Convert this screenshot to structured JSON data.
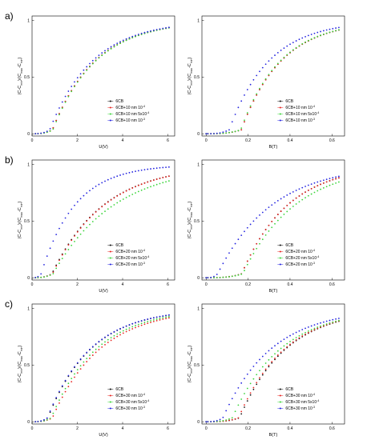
{
  "panel_labels": [
    "a)",
    "b)",
    "c)"
  ],
  "colors": {
    "6CB": "#111111",
    "1e-4": "#e8231e",
    "5e-4": "#38d538",
    "1e-3": "#2424e0"
  },
  "chart_data": [
    {
      "type": "scatter",
      "panel": "a",
      "side": "U",
      "xlabel": "U(V)",
      "ylabel": "(C-C_min)/(C_max-C_min)",
      "xlim": [
        0,
        6.3
      ],
      "ylim": [
        -0.02,
        1.04
      ],
      "xticks": [
        "0",
        "2",
        "4",
        "6"
      ],
      "yticks": [
        "0",
        "0.5",
        "1"
      ],
      "legend": [
        "6CB",
        "6CB+10 nm 10^-4",
        "6CB+10 nm 5x10^-4",
        "6CB+10 nm 10^-3"
      ],
      "series": [
        {
          "name": "6CB",
          "key": "6CB",
          "th": 0.9,
          "k": 1.9
        },
        {
          "name": "6CB+10 nm 10^-4",
          "key": "1e-4",
          "th": 0.9,
          "k": 1.9
        },
        {
          "name": "6CB+10 nm 5x10^-4",
          "key": "5e-4",
          "th": 0.92,
          "k": 1.9
        },
        {
          "name": "6CB+10 nm 10^-3",
          "key": "1e-3",
          "th": 0.78,
          "k": 1.9
        }
      ]
    },
    {
      "type": "scatter",
      "panel": "a",
      "side": "B",
      "xlabel": "B(T)",
      "ylabel": "(C-C_min)/(C_max-C_min)",
      "xlim": [
        -0.02,
        0.66
      ],
      "ylim": [
        -0.02,
        1.04
      ],
      "xticks": [
        "0",
        "0.2",
        "0.4",
        "0.6"
      ],
      "yticks": [
        "0",
        "0.5",
        "1"
      ],
      "legend": [
        "6CB",
        "6CB+10 nm 10^-4",
        "6CB+10 nm 5x10^-4",
        "6CB+10 nm 10^-3"
      ],
      "series": [
        {
          "name": "6CB",
          "key": "6CB",
          "th": 0.168,
          "k": 0.19
        },
        {
          "name": "6CB+10 nm 10^-4",
          "key": "1e-4",
          "th": 0.168,
          "k": 0.19
        },
        {
          "name": "6CB+10 nm 5x10^-4",
          "key": "5e-4",
          "th": 0.165,
          "k": 0.19
        },
        {
          "name": "6CB+10 nm 10^-3",
          "key": "1e-3",
          "th": 0.11,
          "k": 0.19
        }
      ]
    },
    {
      "type": "scatter",
      "panel": "b",
      "side": "U",
      "xlabel": "U(V)",
      "ylabel": "(C-C_min)/(C_max-C_min)",
      "xlim": [
        0,
        6.3
      ],
      "ylim": [
        -0.02,
        1.04
      ],
      "xticks": [
        "0",
        "2",
        "4",
        "6"
      ],
      "yticks": [
        "0",
        "0.5",
        "1"
      ],
      "legend": [
        "6CB",
        "6CB+20 nm 10^-4",
        "6CB+20 nm 5x10^-4",
        "6CB+20 nm 10^-3"
      ],
      "series": [
        {
          "name": "6CB",
          "key": "6CB",
          "th": 0.88,
          "k": 2.3
        },
        {
          "name": "6CB+20 nm 10^-4",
          "key": "1e-4",
          "th": 0.9,
          "k": 2.3
        },
        {
          "name": "6CB+20 nm 5x10^-4",
          "key": "5e-4",
          "th": 0.93,
          "k": 2.7
        },
        {
          "name": "6CB+20 nm 10^-3",
          "key": "1e-3",
          "th": 0.4,
          "k": 1.5
        }
      ]
    },
    {
      "type": "scatter",
      "panel": "b",
      "side": "B",
      "xlabel": "B(T)",
      "ylabel": "(C-C_min)/(C_max-C_min)",
      "xlim": [
        -0.02,
        0.66
      ],
      "ylim": [
        -0.02,
        1.04
      ],
      "xticks": [
        "0",
        "0.2",
        "0.4",
        "0.6"
      ],
      "yticks": [
        "0",
        "0.5",
        "1"
      ],
      "legend": [
        "6CB",
        "6CB+20 nm 10^-4",
        "6CB+20 nm 5x10^-4",
        "6CB+20 nm 10^-3"
      ],
      "series": [
        {
          "name": "6CB",
          "key": "6CB",
          "th": 0.17,
          "k": 0.22
        },
        {
          "name": "6CB+20 nm 10^-4",
          "key": "1e-4",
          "th": 0.17,
          "k": 0.22
        },
        {
          "name": "6CB+20 nm 5x10^-4",
          "key": "5e-4",
          "th": 0.175,
          "k": 0.25
        },
        {
          "name": "6CB+20 nm 10^-3",
          "key": "1e-3",
          "th": 0.055,
          "k": 0.26
        }
      ]
    },
    {
      "type": "scatter",
      "panel": "c",
      "side": "U",
      "xlabel": "U(V)",
      "ylabel": "(C-C_min)/(C_max-C_min)",
      "xlim": [
        0,
        6.3
      ],
      "ylim": [
        -0.02,
        1.04
      ],
      "xticks": [
        "0",
        "2",
        "4",
        "6"
      ],
      "yticks": [
        "0",
        "0.5",
        "1"
      ],
      "legend": [
        "6CB",
        "6CB+30 nm 10^-4",
        "6CB+30 nm 5x10^-4",
        "6CB+30 nm 10^-3"
      ],
      "series": [
        {
          "name": "6CB",
          "key": "6CB",
          "th": 0.7,
          "k": 1.9
        },
        {
          "name": "6CB+30 nm 10^-4",
          "key": "1e-4",
          "th": 0.9,
          "k": 2.1
        },
        {
          "name": "6CB+30 nm 5x10^-4",
          "key": "5e-4",
          "th": 0.85,
          "k": 2.0
        },
        {
          "name": "6CB+30 nm 10^-3",
          "key": "1e-3",
          "th": 0.68,
          "k": 1.9
        }
      ]
    },
    {
      "type": "scatter",
      "panel": "c",
      "side": "B",
      "xlabel": "B(T)",
      "ylabel": "(C-C_min)/(C_max-C_min)",
      "xlim": [
        -0.02,
        0.66
      ],
      "ylim": [
        -0.02,
        1.04
      ],
      "xticks": [
        "0",
        "0.2",
        "0.4",
        "0.6"
      ],
      "yticks": [
        "0",
        "0.5",
        "1"
      ],
      "legend": [
        "6CB",
        "6CB+30 nm 10^-4",
        "6CB+30 nm 5x10^-4",
        "6CB+30 nm 10^-3"
      ],
      "series": [
        {
          "name": "6CB",
          "key": "6CB",
          "th": 0.16,
          "k": 0.22
        },
        {
          "name": "6CB+30 nm 10^-4",
          "key": "1e-4",
          "th": 0.155,
          "k": 0.22
        },
        {
          "name": "6CB+30 nm 5x10^-4",
          "key": "5e-4",
          "th": 0.125,
          "k": 0.23
        },
        {
          "name": "6CB+30 nm 10^-3",
          "key": "1e-3",
          "th": 0.08,
          "k": 0.23
        }
      ]
    }
  ]
}
